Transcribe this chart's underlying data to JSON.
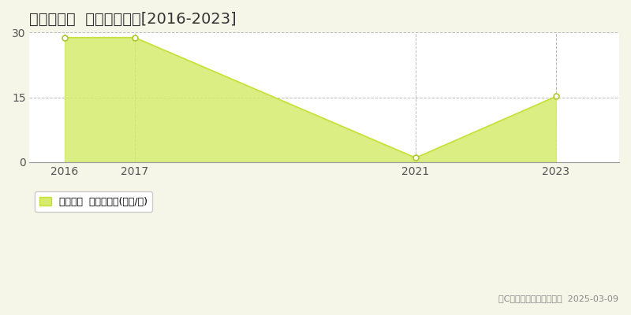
{
  "title": "富谷市成田  土地価格推移[2016-2023]",
  "years": [
    2016,
    2017,
    2021,
    2023
  ],
  "values": [
    28.8,
    28.8,
    1.0,
    15.2
  ],
  "line_color": "#c8e03a",
  "fill_color": "#d4eb6e",
  "fill_alpha": 0.85,
  "marker_facecolor": "white",
  "marker_edgecolor": "#b0c830",
  "xlim": [
    2015.5,
    2023.9
  ],
  "ylim": [
    0,
    30
  ],
  "yticks": [
    0,
    15,
    30
  ],
  "xticks": [
    2016,
    2017,
    2021,
    2023
  ],
  "grid_color": "#bbbbbb",
  "bg_color": "#f5f5e8",
  "plot_bg_color": "#ffffff",
  "legend_label": "土地価格  平均坪単価(万円/坪)",
  "copyright_text": "（C）土地価格ドットコム  2025-03-09",
  "title_fontsize": 14,
  "axis_fontsize": 10,
  "legend_fontsize": 9,
  "copyright_fontsize": 8
}
